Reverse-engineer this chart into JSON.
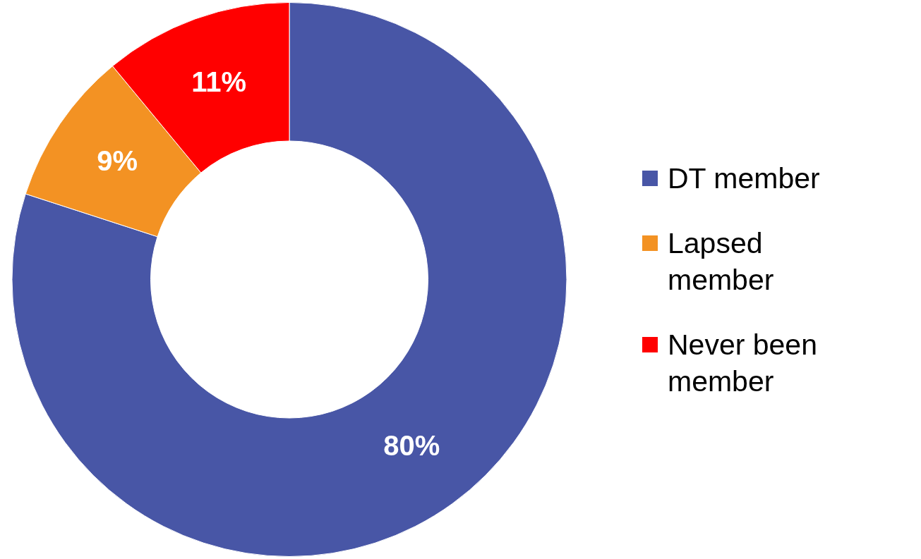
{
  "chart_data": {
    "type": "donut",
    "categories": [
      "DT member",
      "Lapsed member",
      "Never been member"
    ],
    "values": [
      80,
      9,
      11
    ],
    "colors": [
      "#4856a6",
      "#f39223",
      "#ff0000"
    ],
    "value_labels": [
      "80%",
      "9%",
      "11%"
    ],
    "legend": "right"
  }
}
